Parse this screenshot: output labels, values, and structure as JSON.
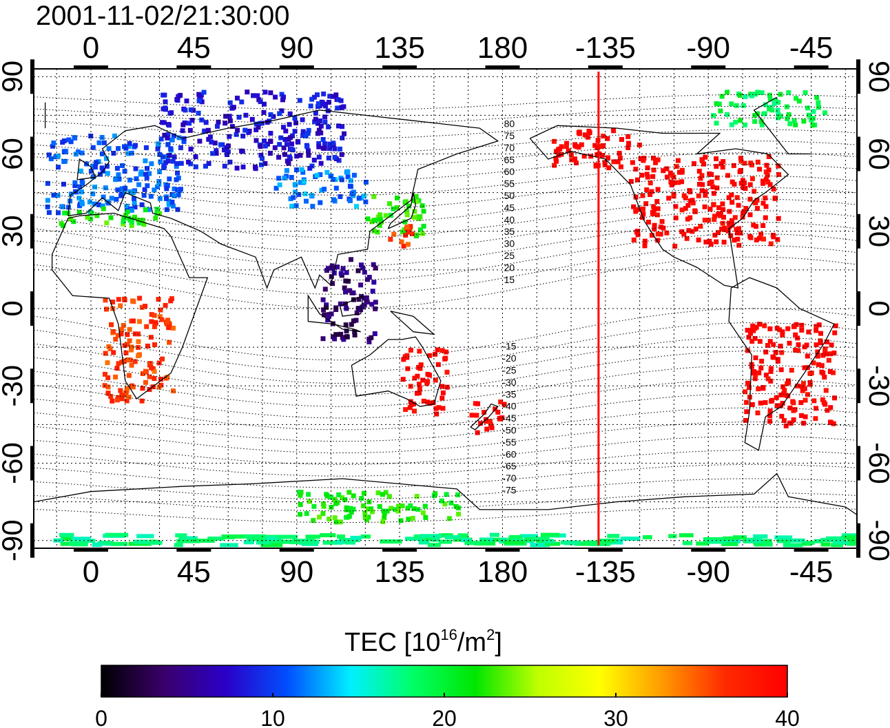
{
  "title": "2001-11-02/21:30:00",
  "map": {
    "lon_ticks": [
      0,
      45,
      90,
      135,
      180,
      -135,
      -90,
      -45
    ],
    "lat_ticks": [
      90,
      60,
      30,
      0,
      -30,
      -60,
      -90
    ],
    "lon_range": [
      -25,
      335
    ],
    "lat_range": [
      -93,
      93
    ],
    "meridian_marker_lon": 222,
    "marker_color": "#ff0000",
    "maglat_labels_north": [
      "80",
      "75",
      "70",
      "65",
      "60",
      "55",
      "50",
      "45",
      "40",
      "35",
      "30",
      "25",
      "20",
      "15"
    ],
    "maglat_labels_south": [
      "-15",
      "-20",
      "-25",
      "-30",
      "-35",
      "-40",
      "-45",
      "-50",
      "-55",
      "-60",
      "-65",
      "-70",
      "-75"
    ]
  },
  "colorbar": {
    "title_prefix": "TEC  [10",
    "title_exp": "16",
    "title_mid": "/m",
    "title_exp2": "2",
    "title_suffix": "]",
    "ticks": [
      "0",
      "10",
      "20",
      "30",
      "40"
    ],
    "min": 0,
    "max": 40,
    "stops": [
      "#000000",
      "#3a006a",
      "#2a00c8",
      "#0050ff",
      "#00f0ff",
      "#00ff66",
      "#00e600",
      "#bfff00",
      "#ffff00",
      "#ff9900",
      "#ff2a00",
      "#ff0000"
    ]
  },
  "chart_data": {
    "type": "heatmap",
    "x_label": "",
    "y_label": "",
    "value_unit": "10^16/m^2",
    "regions": [
      {
        "lon": [
          -20,
          40
        ],
        "lat": [
          38,
          68
        ],
        "tec": 11
      },
      {
        "lon": [
          -15,
          30
        ],
        "lat": [
          33,
          40
        ],
        "tec": 22
      },
      {
        "lon": [
          30,
          110
        ],
        "lat": [
          55,
          85
        ],
        "tec": 8
      },
      {
        "lon": [
          80,
          120
        ],
        "lat": [
          40,
          55
        ],
        "tec": 12
      },
      {
        "lon": [
          120,
          145
        ],
        "lat": [
          28,
          45
        ],
        "tec": 22
      },
      {
        "lon": [
          125,
          140
        ],
        "lat": [
          25,
          33
        ],
        "tec": 36
      },
      {
        "lon": [
          -125,
          -60
        ],
        "lat": [
          25,
          60
        ],
        "tec": 40
      },
      {
        "lon": [
          -160,
          -120
        ],
        "lat": [
          55,
          70
        ],
        "tec": 40
      },
      {
        "lon": [
          -75,
          -35
        ],
        "lat": [
          -45,
          -5
        ],
        "tec": 40
      },
      {
        "lon": [
          135,
          155
        ],
        "lat": [
          -40,
          -15
        ],
        "tec": 40
      },
      {
        "lon": [
          165,
          180
        ],
        "lat": [
          -48,
          -35
        ],
        "tec": 40
      },
      {
        "lon": [
          -90,
          -40
        ],
        "lat": [
          72,
          85
        ],
        "tec": 19
      },
      {
        "lon": [
          100,
          125
        ],
        "lat": [
          -12,
          20
        ],
        "tec": 4
      },
      {
        "lon": [
          5,
          35
        ],
        "lat": [
          -35,
          5
        ],
        "tec": 36
      },
      {
        "lon": [
          -20,
          335
        ],
        "lat": [
          -91,
          -87
        ],
        "tec": 18
      },
      {
        "lon": [
          90,
          160
        ],
        "lat": [
          -82,
          -70
        ],
        "tec": 22
      }
    ]
  }
}
